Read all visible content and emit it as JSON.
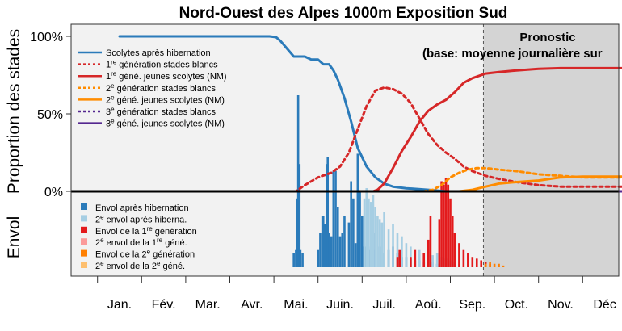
{
  "chart_data": {
    "type": "line",
    "title": "Nord-Ouest des Alpes 1000m Exposition Sud",
    "forecast": {
      "label_line1": "Pronostic",
      "label_line2": "(base: moyenne journalière sur",
      "start_month": 8.25,
      "color": "#d4d4d4"
    },
    "ylabel_top": "Proportion des stades",
    "ylabel_bottom": "Envol",
    "y_ticks": [
      "100%",
      "50%",
      "0%"
    ],
    "y_tick_values": [
      100,
      50,
      0
    ],
    "x_ticks": [
      "Jan.",
      "Fév.",
      "Mar.",
      "Avr.",
      "Mai.",
      "Juin.",
      "Juil.",
      "Aoû.",
      "Sep.",
      "Oct.",
      "Nov.",
      "Déc"
    ],
    "xlim_months": [
      -0.5,
      11.55
    ],
    "ylim_top": [
      0,
      108
    ],
    "series": [
      {
        "name": "Scolytes après hibernation",
        "color": "#2b7bba",
        "dash": "none",
        "x": [
          0,
          3.4,
          3.55,
          3.65,
          3.8,
          3.95,
          4.05,
          4.2,
          4.35,
          4.5,
          4.62,
          4.75,
          4.85,
          4.95,
          5.1,
          5.25,
          5.4,
          5.6,
          5.8,
          6.0,
          6.2,
          6.5,
          7.0,
          7.4,
          11.55
        ],
        "y": [
          100,
          100,
          99.5,
          97,
          92,
          87,
          87,
          87,
          85,
          85,
          82,
          82,
          78,
          72,
          60,
          45,
          28,
          16,
          9,
          5,
          3,
          2,
          1,
          0,
          0
        ]
      },
      {
        "name": "1re génération stades blancs",
        "color": "#d62728",
        "dash": "4,4",
        "x": [
          0,
          4.0,
          4.2,
          4.5,
          4.8,
          5.0,
          5.2,
          5.4,
          5.6,
          5.8,
          6.0,
          6.2,
          6.4,
          6.6,
          6.8,
          7.0,
          7.2,
          7.4,
          7.6,
          7.8,
          8.0,
          8.3,
          8.6,
          9.0,
          9.5,
          10,
          10.5,
          11,
          11.55
        ],
        "y": [
          0,
          0,
          4,
          9,
          12,
          16,
          25,
          40,
          55,
          65,
          67,
          66,
          63,
          57,
          47,
          37,
          30,
          25,
          21,
          16,
          13,
          10,
          8,
          6,
          4,
          3,
          3,
          3,
          3
        ]
      },
      {
        "name": "1re géné. jeunes scolytes (NM)",
        "color": "#d62728",
        "dash": "none",
        "x": [
          0,
          5.75,
          5.85,
          6.0,
          6.2,
          6.4,
          6.6,
          6.8,
          7.0,
          7.2,
          7.4,
          7.6,
          7.8,
          8.0,
          8.3,
          8.6,
          9.0,
          9.5,
          10,
          10.5,
          11,
          11.55
        ],
        "y": [
          0,
          0,
          1,
          5,
          15,
          26,
          35,
          45,
          52,
          56,
          59,
          64,
          70,
          73,
          76,
          77,
          78,
          79,
          79.5,
          79.5,
          79.5,
          79.5
        ]
      },
      {
        "name": "2e génération stades blancs",
        "color": "#ff8c00",
        "dash": "4,4",
        "x": [
          0,
          6.9,
          7.1,
          7.3,
          7.5,
          7.7,
          7.9,
          8.1,
          8.3,
          8.6,
          9.0,
          9.5,
          10,
          10.5,
          11,
          11.55
        ],
        "y": [
          0,
          0,
          1,
          4,
          9,
          12,
          14,
          15,
          15,
          14,
          13,
          11,
          10,
          9,
          9,
          9
        ]
      },
      {
        "name": "2e géné. jeunes scolytes (NM)",
        "color": "#ff8c00",
        "dash": "none",
        "x": [
          0,
          7.7,
          8.0,
          8.3,
          8.6,
          9.0,
          9.5,
          10,
          10.5,
          11,
          11.55
        ],
        "y": [
          0,
          0,
          1,
          3,
          5,
          6,
          7,
          9,
          9.5,
          9.5,
          9.5
        ]
      },
      {
        "name": "3e génération stades blancs",
        "color": "#54278f",
        "dash": "4,4",
        "x": [
          0,
          11.55
        ],
        "y": [
          0,
          0
        ]
      },
      {
        "name": "3e géné. jeunes scolytes (NM)",
        "color": "#54278f",
        "dash": "none",
        "x": [
          0,
          11.55
        ],
        "y": [
          0,
          0
        ]
      }
    ],
    "legend_lines": [
      {
        "text": "Scolytes après hibernation",
        "color": "#2b7bba",
        "dash": "none"
      },
      {
        "sup": "re",
        "pre": "1",
        "text": " génération stades blancs",
        "color": "#d62728",
        "dash": "3,3"
      },
      {
        "sup": "re",
        "pre": "1",
        "text": " géné. jeunes scolytes (NM)",
        "color": "#d62728",
        "dash": "none"
      },
      {
        "sup": "e",
        "pre": "2",
        "text": " génération stades blancs",
        "color": "#ff8c00",
        "dash": "3,3"
      },
      {
        "sup": "e",
        "pre": "2",
        "text": " géné. jeunes scolytes (NM)",
        "color": "#ff8c00",
        "dash": "none"
      },
      {
        "sup": "e",
        "pre": "3",
        "text": " génération stades blancs",
        "color": "#54278f",
        "dash": "3,3"
      },
      {
        "sup": "e",
        "pre": "3",
        "text": " géné. jeunes scolytes (NM)",
        "color": "#54278f",
        "dash": "none"
      }
    ],
    "legend_flight": [
      {
        "text": "Envol après hibernation",
        "color": "#2b7bba"
      },
      {
        "pre": "2",
        "sup": "e",
        "text": " envol après hiberna.",
        "color": "#a6cee3"
      },
      {
        "pre": "Envol de la 1",
        "sup": "re",
        "text": " génération",
        "color": "#e31a1c"
      },
      {
        "pre": "2",
        "sup": "e",
        "text": " envol de la 1",
        "sup2": "re",
        "text2": " géné.",
        "color": "#fb9a99"
      },
      {
        "pre": "Envol de la 2",
        "sup": "e",
        "text": " génération",
        "color": "#ff7f00"
      },
      {
        "pre": "2",
        "sup": "e",
        "text": " envol de la 2",
        "sup2": "e",
        "text2": " géné.",
        "color": "#fdbf6f"
      }
    ],
    "flight_bars": {
      "unit": "relative",
      "max": 100,
      "groups": [
        {
          "name": "Envol après hibernation",
          "color": "#2b7bba",
          "x": [
            3.95,
            4.0,
            4.02,
            4.05,
            4.08,
            4.1,
            4.15,
            4.5,
            4.55,
            4.6,
            4.62,
            4.65,
            4.7,
            4.72,
            4.75,
            4.8,
            4.85,
            4.9,
            4.95,
            5.0,
            5.05,
            5.1,
            5.2,
            5.25,
            5.3,
            5.35,
            5.4,
            5.45,
            5.5,
            5.55,
            5.6,
            5.65,
            5.7,
            5.75,
            5.8,
            5.9,
            6.0,
            6.1,
            6.2,
            6.3,
            6.4,
            6.5,
            6.6,
            6.7,
            6.8,
            6.9,
            7.0,
            7.1,
            7.2
          ],
          "y": [
            8,
            10,
            40,
            100,
            60,
            10,
            8,
            10,
            20,
            30,
            30,
            25,
            60,
            64,
            20,
            18,
            56,
            56,
            35,
            18,
            20,
            30,
            26,
            50,
            40,
            14,
            66,
            44,
            30,
            12,
            14,
            10,
            12,
            20,
            10,
            12,
            8,
            10,
            12,
            8,
            6,
            6,
            5,
            4,
            4,
            3,
            3,
            3,
            2
          ]
        },
        {
          "name": "2e envol après hiberna.",
          "color": "#a6cee3",
          "x": [
            5.55,
            5.6,
            5.65,
            5.7,
            5.75,
            5.8,
            5.85,
            5.9,
            5.95,
            6.0,
            6.1,
            6.2,
            6.3,
            6.4,
            6.5,
            6.6,
            6.7,
            6.8,
            6.9,
            7.0,
            7.1,
            7.2,
            7.3,
            7.4,
            7.5,
            7.6,
            7.7
          ],
          "y": [
            40,
            46,
            40,
            38,
            42,
            35,
            30,
            28,
            26,
            32,
            22,
            25,
            20,
            18,
            14,
            12,
            10,
            10,
            8,
            6,
            7,
            8,
            6,
            5,
            4,
            3,
            2
          ]
        },
        {
          "name": "Envol de la 1re génération",
          "color": "#e31a1c",
          "x": [
            6.3,
            6.35,
            6.6,
            6.7,
            6.9,
            7.0,
            7.05,
            7.25,
            7.3,
            7.35,
            7.4,
            7.45,
            7.5,
            7.55,
            7.6,
            7.7,
            7.8,
            7.9,
            8.0,
            8.1,
            8.2,
            8.3,
            8.4
          ],
          "y": [
            6,
            10,
            6,
            10,
            8,
            16,
            30,
            28,
            50,
            48,
            52,
            48,
            40,
            30,
            20,
            14,
            10,
            8,
            6,
            5,
            4,
            3,
            2
          ]
        },
        {
          "name": "Envol de la 2e génération",
          "color": "#ff7f00",
          "x": [
            8.3,
            8.4,
            8.5,
            8.6,
            8.7
          ],
          "y": [
            2,
            3,
            2,
            2,
            1
          ]
        }
      ]
    }
  }
}
